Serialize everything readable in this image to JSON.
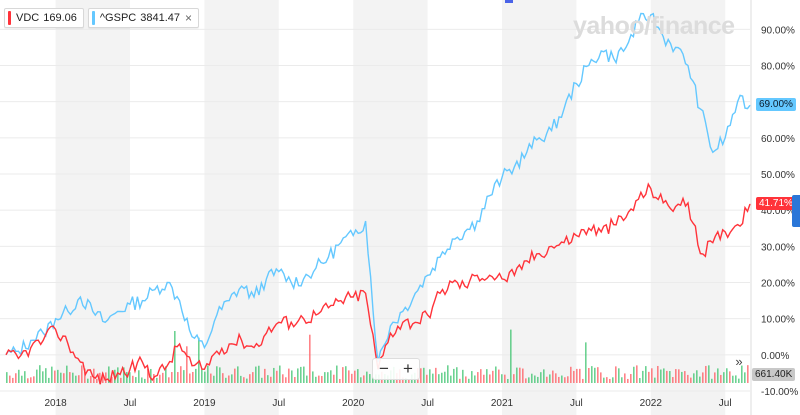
{
  "watermark": "yahoo/finance",
  "legend": [
    {
      "symbol": "VDC",
      "value": "169.06",
      "color": "#ff333a"
    },
    {
      "symbol": "^GSPC",
      "value": "3841.47",
      "color": "#64c8ff",
      "close": "×"
    }
  ],
  "price_tags": {
    "sp": "69.00%",
    "vdc": "41.71%",
    "volume": "661.40K"
  },
  "controls": {
    "zoom_out": "−",
    "zoom_in": "+",
    "more": "»"
  },
  "chart_data": {
    "type": "line",
    "y_unit": "percent change",
    "ylim": [
      -10,
      97
    ],
    "yticks": [
      -10,
      0,
      10,
      20,
      30,
      40,
      50,
      60,
      70,
      80,
      90
    ],
    "ytick_labels": [
      "-10.00%",
      "0.00%",
      "10.00%",
      "20.00%",
      "30.00%",
      "40.00%",
      "50.00%",
      "60.00%",
      "70.00%",
      "80.00%",
      "90.00%"
    ],
    "x_range": [
      "2017-09",
      "2022-09"
    ],
    "x_ticks": [
      {
        "date": "2018-01",
        "label": "2018"
      },
      {
        "date": "2018-07",
        "label": "Jul"
      },
      {
        "date": "2019-01",
        "label": "2019"
      },
      {
        "date": "2019-07",
        "label": "Jul"
      },
      {
        "date": "2020-01",
        "label": "2020"
      },
      {
        "date": "2020-07",
        "label": "Jul"
      },
      {
        "date": "2021-01",
        "label": "2021"
      },
      {
        "date": "2021-07",
        "label": "Jul"
      },
      {
        "date": "2022-01",
        "label": "2022"
      },
      {
        "date": "2022-07",
        "label": "Jul"
      }
    ],
    "shaded_bands": [
      [
        "2018-01",
        "2018-07"
      ],
      [
        "2019-01",
        "2019-07"
      ],
      [
        "2020-01",
        "2020-07"
      ],
      [
        "2021-01",
        "2021-07"
      ],
      [
        "2022-01",
        "2022-07"
      ]
    ],
    "series": [
      {
        "name": "^GSPC",
        "color": "#64c8ff",
        "last": 69.0,
        "points": [
          [
            "2017-09",
            0
          ],
          [
            "2017-10",
            1
          ],
          [
            "2017-11",
            4
          ],
          [
            "2017-12",
            6
          ],
          [
            "2018-01",
            10
          ],
          [
            "2018-02",
            12
          ],
          [
            "2018-03",
            16
          ],
          [
            "2018-04",
            12
          ],
          [
            "2018-05",
            9
          ],
          [
            "2018-06",
            12
          ],
          [
            "2018-07",
            14
          ],
          [
            "2018-08",
            15
          ],
          [
            "2018-09",
            18
          ],
          [
            "2018-10",
            20
          ],
          [
            "2018-11",
            15
          ],
          [
            "2018-12",
            5
          ],
          [
            "2019-01",
            2
          ],
          [
            "2019-02",
            11
          ],
          [
            "2019-03",
            15
          ],
          [
            "2019-04",
            19
          ],
          [
            "2019-05",
            16
          ],
          [
            "2019-06",
            21
          ],
          [
            "2019-07",
            23
          ],
          [
            "2019-08",
            20
          ],
          [
            "2019-09",
            21
          ],
          [
            "2019-10",
            24
          ],
          [
            "2019-11",
            27
          ],
          [
            "2019-12",
            31
          ],
          [
            "2020-01",
            33
          ],
          [
            "2020-02",
            37
          ],
          [
            "2020-03",
            -2
          ],
          [
            "2020-04",
            8
          ],
          [
            "2020-05",
            12
          ],
          [
            "2020-06",
            17
          ],
          [
            "2020-07",
            22
          ],
          [
            "2020-08",
            27
          ],
          [
            "2020-09",
            32
          ],
          [
            "2020-10",
            34
          ],
          [
            "2020-11",
            37
          ],
          [
            "2020-12",
            44
          ],
          [
            "2021-01",
            49
          ],
          [
            "2021-02",
            52
          ],
          [
            "2021-03",
            56
          ],
          [
            "2021-04",
            60
          ],
          [
            "2021-05",
            62
          ],
          [
            "2021-06",
            68
          ],
          [
            "2021-07",
            75
          ],
          [
            "2021-08",
            80
          ],
          [
            "2021-09",
            84
          ],
          [
            "2021-10",
            82
          ],
          [
            "2021-11",
            85
          ],
          [
            "2021-12",
            92
          ],
          [
            "2022-01",
            94
          ],
          [
            "2022-02",
            88
          ],
          [
            "2022-03",
            85
          ],
          [
            "2022-04",
            80
          ],
          [
            "2022-05",
            68
          ],
          [
            "2022-06",
            56
          ],
          [
            "2022-07",
            60
          ],
          [
            "2022-08",
            70
          ],
          [
            "2022-09",
            69
          ]
        ]
      },
      {
        "name": "VDC",
        "color": "#ff333a",
        "last": 41.71,
        "points": [
          [
            "2017-09",
            0
          ],
          [
            "2017-10",
            -1
          ],
          [
            "2017-11",
            2
          ],
          [
            "2017-12",
            4
          ],
          [
            "2018-01",
            7
          ],
          [
            "2018-02",
            3
          ],
          [
            "2018-03",
            -2
          ],
          [
            "2018-04",
            -6
          ],
          [
            "2018-05",
            -7
          ],
          [
            "2018-06",
            -5
          ],
          [
            "2018-07",
            -4
          ],
          [
            "2018-08",
            -2
          ],
          [
            "2018-09",
            -6
          ],
          [
            "2018-10",
            -3
          ],
          [
            "2018-11",
            3
          ],
          [
            "2018-12",
            -3
          ],
          [
            "2019-01",
            -4
          ],
          [
            "2019-02",
            1
          ],
          [
            "2019-03",
            3
          ],
          [
            "2019-04",
            4
          ],
          [
            "2019-05",
            2
          ],
          [
            "2019-06",
            6
          ],
          [
            "2019-07",
            9
          ],
          [
            "2019-08",
            9
          ],
          [
            "2019-09",
            10
          ],
          [
            "2019-10",
            11
          ],
          [
            "2019-11",
            13
          ],
          [
            "2019-12",
            15
          ],
          [
            "2020-01",
            16
          ],
          [
            "2020-02",
            17
          ],
          [
            "2020-03",
            -4
          ],
          [
            "2020-04",
            6
          ],
          [
            "2020-05",
            9
          ],
          [
            "2020-06",
            9
          ],
          [
            "2020-07",
            11
          ],
          [
            "2020-08",
            17
          ],
          [
            "2020-09",
            20
          ],
          [
            "2020-10",
            19
          ],
          [
            "2020-11",
            22
          ],
          [
            "2020-12",
            22
          ],
          [
            "2021-01",
            21
          ],
          [
            "2021-02",
            22
          ],
          [
            "2021-03",
            26
          ],
          [
            "2021-04",
            28
          ],
          [
            "2021-05",
            30
          ],
          [
            "2021-06",
            31
          ],
          [
            "2021-07",
            33
          ],
          [
            "2021-08",
            35
          ],
          [
            "2021-09",
            34
          ],
          [
            "2021-10",
            36
          ],
          [
            "2021-11",
            38
          ],
          [
            "2021-12",
            43
          ],
          [
            "2022-01",
            46
          ],
          [
            "2022-02",
            42
          ],
          [
            "2022-03",
            41
          ],
          [
            "2022-04",
            42
          ],
          [
            "2022-05",
            28
          ],
          [
            "2022-06",
            31
          ],
          [
            "2022-07",
            34
          ],
          [
            "2022-08",
            36
          ],
          [
            "2022-09",
            41.71
          ]
        ]
      }
    ],
    "volume_last": "661.40K"
  }
}
